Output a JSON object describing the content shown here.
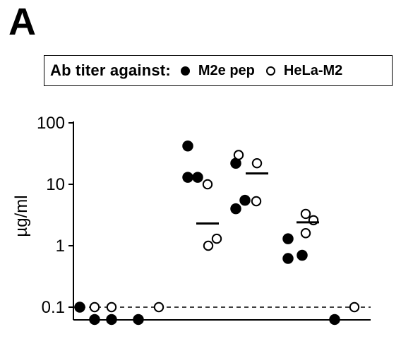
{
  "panel_label": "A",
  "legend": {
    "title": "Ab titer against:",
    "entries": [
      {
        "label": "M2e pep",
        "marker": "filled"
      },
      {
        "label": "HeLa-M2",
        "marker": "open"
      }
    ]
  },
  "chart_data": {
    "type": "scatter",
    "ylabel": "µg/ml",
    "yscale": "log",
    "ylim": [
      0.062,
      100
    ],
    "yticks": [
      {
        "value": 0.1,
        "label": "0.1"
      },
      {
        "value": 1,
        "label": "1"
      },
      {
        "value": 10,
        "label": "10"
      },
      {
        "value": 100,
        "label": "100"
      }
    ],
    "reference_line": {
      "value": 0.1,
      "style": "dashed"
    },
    "colors": {
      "filled": "#000000",
      "open": "#ffffff",
      "stroke": "#000000"
    },
    "groups": [
      {
        "filled": [
          0.1
        ],
        "open": []
      },
      {
        "filled": [
          0.063,
          0.063
        ],
        "open": [
          0.1,
          0.1
        ]
      },
      {
        "filled": [
          0.063
        ],
        "open": [
          0.1
        ]
      },
      {
        "filled": [
          42,
          13,
          13
        ],
        "open": [
          10,
          1,
          1.3
        ],
        "mean": 2.3
      },
      {
        "filled": [
          22,
          4,
          5.5
        ],
        "open": [
          30,
          22,
          5.3
        ],
        "mean": 15
      },
      {
        "filled": [
          1.3,
          0.62,
          0.7
        ],
        "open": [
          3.3,
          1.6,
          2.6
        ],
        "mean": 2.4
      },
      {
        "filled": [
          0.063
        ],
        "open": [
          0.1
        ]
      }
    ]
  }
}
